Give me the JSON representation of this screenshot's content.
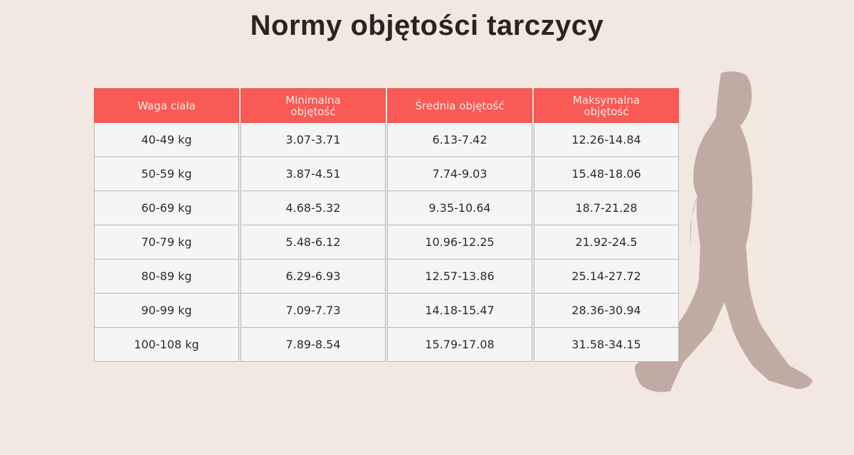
{
  "header": {
    "title": "Normy objętości tarczycy"
  },
  "table": {
    "headers": [
      "Waga ciała",
      "Minimalna objętość",
      "Średnia objętość",
      "Maksymalna objętość"
    ],
    "rows": [
      [
        "40-49 kg",
        "3.07-3.71",
        "6.13-7.42",
        "12.26-14.84"
      ],
      [
        "50-59 kg",
        "3.87-4.51",
        "7.74-9.03",
        "15.48-18.06"
      ],
      [
        "60-69 kg",
        "4.68-5.32",
        "9.35-10.64",
        "18.7-21.28"
      ],
      [
        "70-79 kg",
        "5.48-6.12",
        "10.96-12.25",
        "21.92-24.5"
      ],
      [
        "80-89 kg",
        "6.29-6.93",
        "12.57-13.86",
        "25.14-27.72"
      ],
      [
        "90-99 kg",
        "7.09-7.73",
        "14.18-15.47",
        "28.36-30.94"
      ],
      [
        "100-108 kg",
        "7.89-8.54",
        "15.79-17.08",
        "31.58-34.15"
      ]
    ]
  }
}
